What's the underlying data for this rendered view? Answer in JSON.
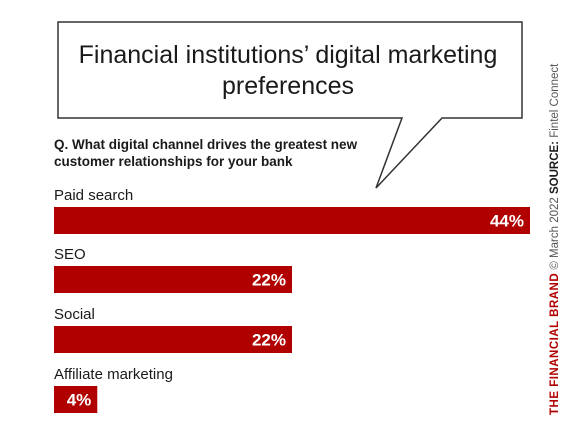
{
  "title": "Financial institutions’ digital marketing preferences",
  "question": "Q. What digital channel drives the greatest new customer relationships for your bank",
  "colors": {
    "bar": "#b10000",
    "brand": "#b10000",
    "bubble_stroke": "#333333"
  },
  "chart_data": {
    "type": "bar",
    "orientation": "horizontal",
    "title": "Financial institutions’ digital marketing preferences",
    "categories": [
      "Paid search",
      "SEO",
      "Social",
      "Affiliate marketing"
    ],
    "values": [
      44,
      22,
      22,
      4
    ],
    "value_labels": [
      "44%",
      "22%",
      "22%",
      "4%"
    ],
    "unit": "%",
    "xlim": [
      0,
      44
    ],
    "grid": false,
    "legend": "none"
  },
  "sidebar": {
    "brand": "THE FINANCIAL BRAND",
    "copyright": "© March 2022",
    "source_label": "SOURCE:",
    "source": "Fintel Connect"
  }
}
